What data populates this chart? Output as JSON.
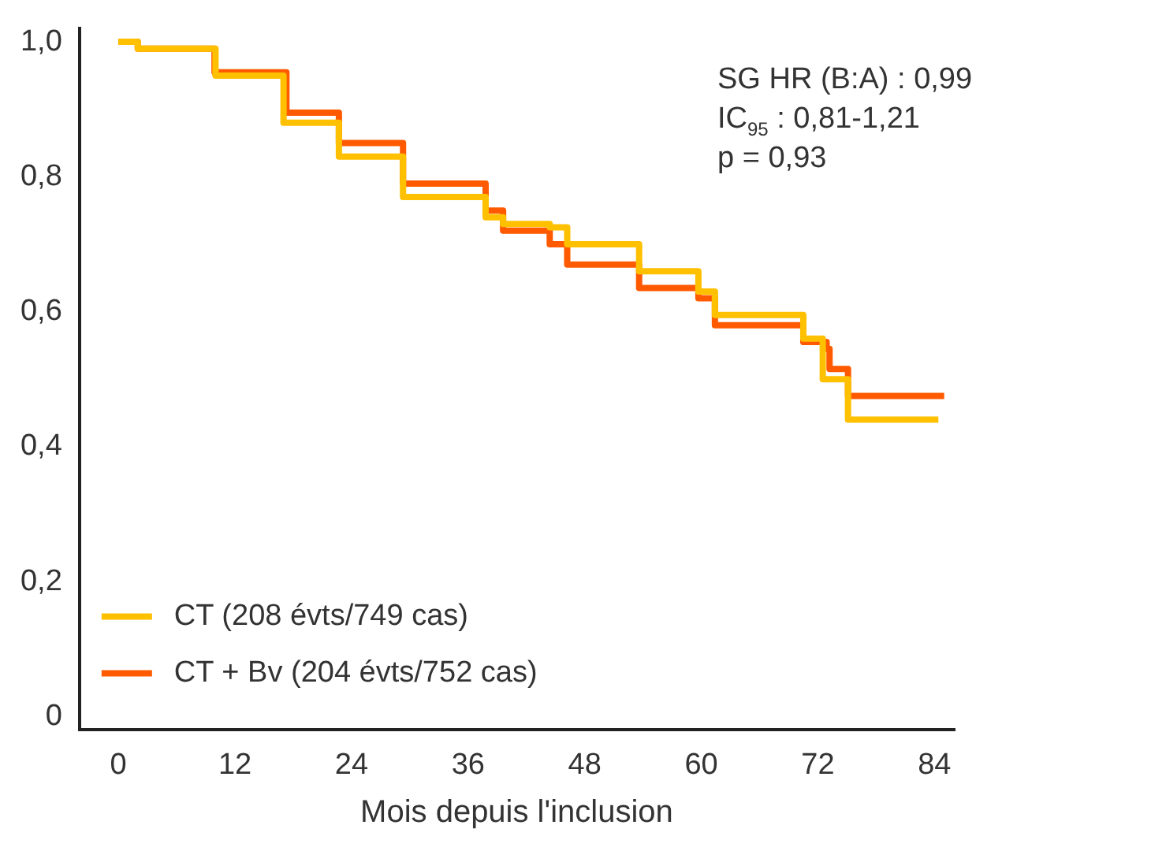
{
  "chart_data": {
    "type": "step",
    "xlabel": "Mois depuis l'inclusion",
    "xlim": [
      -4,
      86
    ],
    "xticks": [
      0,
      12,
      24,
      36,
      48,
      60,
      72,
      84
    ],
    "ylim": [
      -0.02,
      1.02
    ],
    "yticks": [
      0,
      {
        "value": 0.2,
        "label": "0,2"
      },
      {
        "value": 0.4,
        "label": "0,4"
      },
      {
        "value": 0.6,
        "label": "0,6"
      },
      {
        "value": 0.8,
        "label": "0,8"
      },
      {
        "value": 1,
        "label": "1,0"
      }
    ],
    "grid": false,
    "legend": "bottom left",
    "marker": "none",
    "line_style": "solid",
    "annotations": [
      "SG HR (B:A) : 0,99",
      "IC$_{95}$ : 0,81-1,21",
      "p = 0,93"
    ],
    "series": [
      {
        "name": "CT (208 évts/749 cas)",
        "color": "#ffc000",
        "x": [
          0,
          2,
          10,
          17,
          22.7,
          29.3,
          37.8,
          39.6,
          44.4,
          46.2,
          53.6,
          59.7,
          61.4,
          70.5,
          72.5,
          75.1,
          84.4
        ],
        "values": [
          1,
          0.99,
          0.95,
          0.88,
          0.83,
          0.77,
          0.74,
          0.73,
          0.725,
          0.7,
          0.66,
          0.63,
          0.595,
          0.56,
          0.5,
          0.44,
          0.44
        ]
      },
      {
        "name": "CT + Bv (204 évts/752 cas)",
        "color": "#ff5a00",
        "x": [
          0,
          2,
          9.9,
          17.3,
          22.7,
          29.3,
          37.8,
          39.6,
          44.4,
          46.2,
          53.6,
          59.7,
          61.4,
          70.5,
          72.9,
          73.2,
          75.1,
          85
        ],
        "values": [
          1,
          0.99,
          0.955,
          0.895,
          0.85,
          0.79,
          0.75,
          0.72,
          0.7,
          0.67,
          0.635,
          0.62,
          0.58,
          0.555,
          0.545,
          0.515,
          0.475,
          0.475
        ]
      }
    ]
  }
}
